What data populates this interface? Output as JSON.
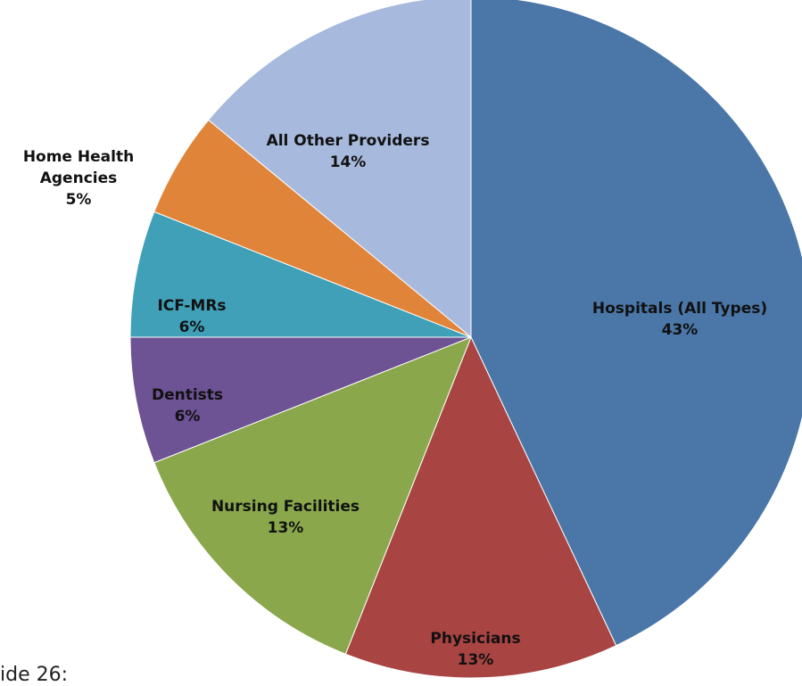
{
  "chart_data": {
    "type": "pie",
    "categories": [
      "Hospitals (All Types)",
      "Physicians",
      "Nursing Facilities",
      "Dentists",
      "ICF-MRs",
      "Home Health Agencies",
      "All Other Providers"
    ],
    "values": [
      43,
      13,
      13,
      6,
      6,
      5,
      14
    ],
    "value_labels": [
      "43%",
      "13%",
      "13%",
      "6%",
      "6%",
      "5%",
      "14%"
    ],
    "colors": [
      "#4a76a8",
      "#a84442",
      "#8aa84b",
      "#6d5294",
      "#3fa0b7",
      "#e0843a",
      "#a7b9dc"
    ],
    "note": "ide 26:"
  }
}
